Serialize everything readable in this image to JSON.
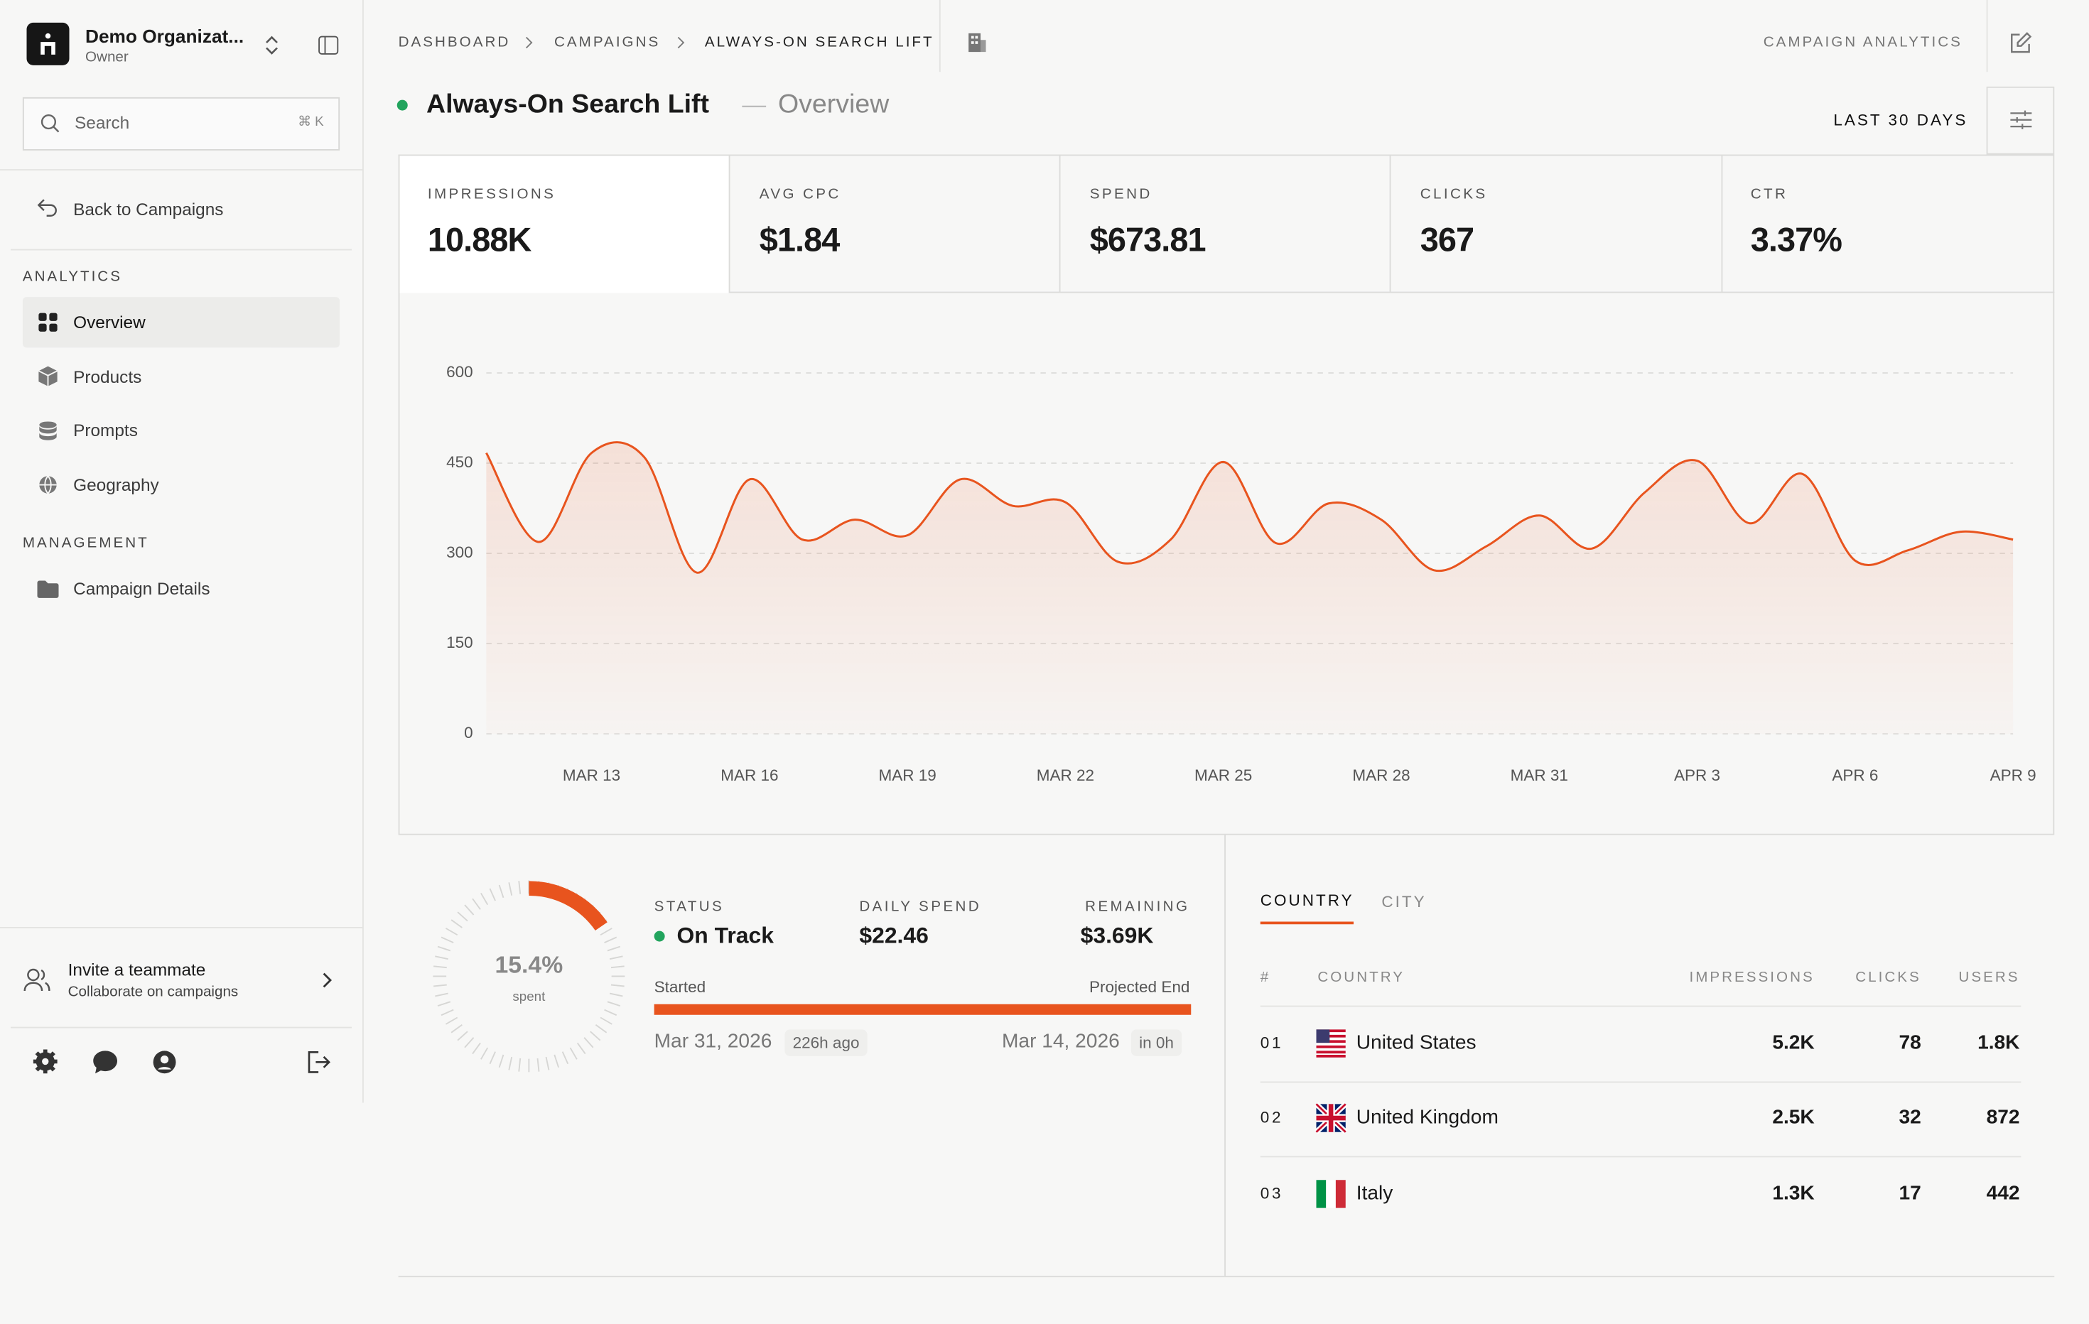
{
  "sidebar": {
    "org_name": "Demo Organizat...",
    "org_role": "Owner",
    "search_placeholder": "Search",
    "search_shortcut": "⌘ K",
    "back": "Back to Campaigns",
    "sections": [
      {
        "title": "ANALYTICS",
        "items": [
          "Overview",
          "Products",
          "Prompts",
          "Geography"
        ]
      },
      {
        "title": "MANAGEMENT",
        "items": [
          "Campaign Details"
        ]
      }
    ],
    "invite": {
      "title": "Invite a teammate",
      "subtitle": "Collaborate on campaigns"
    }
  },
  "header": {
    "breadcrumbs": [
      "DASHBOARD",
      "CAMPAIGNS",
      "ALWAYS-ON SEARCH LIFT"
    ],
    "section": "CAMPAIGN ANALYTICS",
    "title": "Always-On Search Lift",
    "separator": "—",
    "subtitle": "Overview",
    "range": "LAST 30 DAYS"
  },
  "kpis": [
    {
      "label": "IMPRESSIONS",
      "value": "10.88K"
    },
    {
      "label": "AVG CPC",
      "value": "$1.84"
    },
    {
      "label": "SPEND",
      "value": "$673.81"
    },
    {
      "label": "CLICKS",
      "value": "367"
    },
    {
      "label": "CTR",
      "value": "3.37%"
    }
  ],
  "chart_data": {
    "type": "line",
    "categories": [
      null,
      null,
      "MAR 13",
      null,
      null,
      "MAR 16",
      null,
      null,
      "MAR 19",
      null,
      null,
      "MAR 22",
      null,
      null,
      "MAR 25",
      null,
      null,
      "MAR 28",
      null,
      null,
      "MAR 31",
      null,
      null,
      "APR 3",
      null,
      null,
      "APR 6",
      null,
      null,
      "APR 9"
    ],
    "values": [
      467,
      319,
      467,
      460,
      268,
      423,
      323,
      356,
      330,
      423,
      379,
      385,
      286,
      323,
      452,
      317,
      383,
      356,
      272,
      312,
      363,
      308,
      401,
      454,
      350,
      432,
      288,
      305,
      336,
      323
    ],
    "color": "#e8541e",
    "ylim": [
      0,
      600
    ],
    "yticks": [
      0,
      150,
      300,
      450,
      600
    ],
    "grid": true
  },
  "budget": {
    "spent_pct": 15.4,
    "spent_label": "15.4%",
    "spent_caption": "spent",
    "status_label": "STATUS",
    "status": "On Track",
    "daily_label": "DAILY SPEND",
    "daily": "$22.46",
    "remaining_label": "REMAINING",
    "remaining": "$3.69K",
    "started_label": "Started",
    "end_label": "Projected End",
    "start_date": "Mar 31, 2026",
    "start_ago": "226h ago",
    "end_date": "Mar 14, 2026",
    "end_in": "in 0h"
  },
  "geo": {
    "tabs": [
      "COUNTRY",
      "CITY"
    ],
    "columns": [
      "#",
      "COUNTRY",
      "IMPRESSIONS",
      "CLICKS",
      "USERS"
    ],
    "rows": [
      [
        "01",
        "United States",
        "5.2K",
        "78",
        "1.8K"
      ],
      [
        "02",
        "United Kingdom",
        "2.5K",
        "32",
        "872"
      ],
      [
        "03",
        "Italy",
        "1.3K",
        "17",
        "442"
      ]
    ]
  }
}
